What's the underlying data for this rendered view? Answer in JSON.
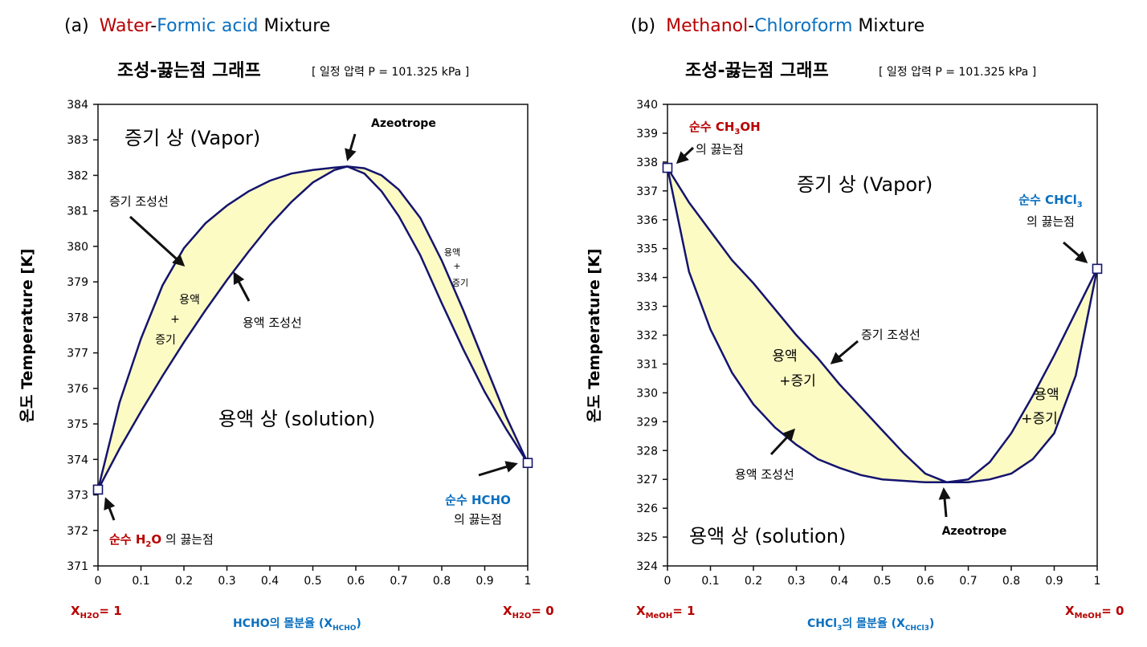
{
  "colors": {
    "title_red": "#b80000",
    "title_blue": "#0a6fbf",
    "curve": "#14146e",
    "fill": "#fdfbc4",
    "axis": "#111111"
  },
  "chart_data": [
    {
      "type": "line",
      "panel_label": "(a)",
      "heading": {
        "part1": "Water",
        "dash": "-",
        "part2": "Formic acid",
        "part3": " Mixture"
      },
      "title": "조성-끓는점 그래프",
      "subtitle": "[ 일정 압력 P = 101.325 kPa ]",
      "ylabel": "온도 Temperature [K]",
      "xlabel_main": "HCHO의 몰분율 (X",
      "xlabel_sub": "HCHO",
      "xlabel_end": ")",
      "x_left_label": {
        "main": "X",
        "sub": "H2O",
        "value": "= 1"
      },
      "x_right_label": {
        "main": "X",
        "sub": "H2O",
        "value": "= 0"
      },
      "xlim": [
        0,
        1
      ],
      "ylim": [
        371,
        384
      ],
      "xticks": [
        "0",
        "0.1",
        "0.2",
        "0.3",
        "0.4",
        "0.5",
        "0.6",
        "0.7",
        "0.8",
        "0.9",
        "1"
      ],
      "yticks": [
        "371",
        "372",
        "373",
        "374",
        "375",
        "376",
        "377",
        "378",
        "379",
        "380",
        "381",
        "382",
        "383",
        "384"
      ],
      "series": [
        {
          "name": "증기 조성선",
          "x": [
            0,
            0.05,
            0.1,
            0.15,
            0.2,
            0.25,
            0.3,
            0.35,
            0.4,
            0.45,
            0.5,
            0.55,
            0.58,
            0.62,
            0.66,
            0.7,
            0.75,
            0.8,
            0.85,
            0.9,
            0.95,
            1.0
          ],
          "y": [
            373.15,
            375.6,
            377.4,
            378.9,
            379.95,
            380.65,
            381.15,
            381.55,
            381.85,
            382.05,
            382.15,
            382.22,
            382.25,
            382.2,
            382.0,
            381.6,
            380.8,
            379.6,
            378.2,
            376.7,
            375.2,
            373.9
          ]
        },
        {
          "name": "용액 조성선",
          "x": [
            0,
            0.05,
            0.1,
            0.15,
            0.2,
            0.25,
            0.3,
            0.35,
            0.4,
            0.45,
            0.5,
            0.55,
            0.58,
            0.62,
            0.66,
            0.7,
            0.75,
            0.8,
            0.85,
            0.9,
            0.95,
            1.0
          ],
          "y": [
            373.15,
            374.3,
            375.35,
            376.35,
            377.3,
            378.2,
            379.05,
            379.85,
            380.6,
            381.25,
            381.8,
            382.15,
            382.25,
            382.05,
            381.55,
            380.85,
            379.75,
            378.4,
            377.1,
            375.9,
            374.85,
            373.9
          ]
        }
      ],
      "endpoints": [
        {
          "x": 0,
          "y": 373.15
        },
        {
          "x": 1,
          "y": 373.9
        }
      ],
      "annotations": {
        "vapor_region": "증기 상 (Vapor)",
        "liquid_region": "용액 상 (solution)",
        "azeotrope": "Azeotrope",
        "vapor_line": "증기 조성선",
        "liquid_line": "용액 조성선",
        "mix_left_1": "용액",
        "mix_left_2": "+",
        "mix_left_3": "증기",
        "mix_right_1": "용액",
        "mix_right_2": "+",
        "mix_right_3": "증기",
        "pure_left_red": "순수 H",
        "pure_left_sub": "2",
        "pure_left_red2": "O",
        "pure_left_black": " 의 끓는점",
        "pure_right_blue": "순수 HCHO",
        "pure_right_black": "의 끓는점"
      }
    },
    {
      "type": "line",
      "panel_label": "(b)",
      "heading": {
        "part1": "Methanol",
        "dash": "-",
        "part2": "Chloroform",
        "part3": " Mixture"
      },
      "title": "조성-끓는점 그래프",
      "subtitle": "[ 일정 압력 P = 101.325 kPa ]",
      "ylabel": "온도 Temperature [K]",
      "xlabel_main": "CHCl",
      "xlabel_sub1": "3",
      "xlabel_mid": "의 몰분율 (X",
      "xlabel_sub": "CHCl3",
      "xlabel_end": ")",
      "x_left_label": {
        "main": "X",
        "sub": "MeOH",
        "value": "= 1"
      },
      "x_right_label": {
        "main": "X",
        "sub": "MeOH",
        "value": "= 0"
      },
      "xlim": [
        0,
        1
      ],
      "ylim": [
        324,
        340
      ],
      "xticks": [
        "0",
        "0.1",
        "0.2",
        "0.3",
        "0.4",
        "0.5",
        "0.6",
        "0.7",
        "0.8",
        "0.9",
        "1"
      ],
      "yticks": [
        "324",
        "325",
        "326",
        "327",
        "328",
        "329",
        "330",
        "331",
        "332",
        "333",
        "334",
        "335",
        "336",
        "337",
        "338",
        "339",
        "340"
      ],
      "series": [
        {
          "name": "증기 조성선",
          "x": [
            0,
            0.05,
            0.1,
            0.15,
            0.2,
            0.25,
            0.3,
            0.35,
            0.4,
            0.45,
            0.5,
            0.55,
            0.6,
            0.65,
            0.7,
            0.75,
            0.8,
            0.85,
            0.9,
            0.95,
            1.0
          ],
          "y": [
            337.8,
            336.6,
            335.6,
            334.6,
            333.8,
            332.9,
            332.0,
            331.2,
            330.3,
            329.5,
            328.7,
            327.9,
            327.2,
            326.9,
            327.0,
            327.6,
            328.6,
            329.9,
            331.3,
            332.8,
            334.3
          ]
        },
        {
          "name": "용액 조성선",
          "x": [
            0,
            0.05,
            0.1,
            0.15,
            0.2,
            0.25,
            0.3,
            0.35,
            0.4,
            0.45,
            0.5,
            0.55,
            0.6,
            0.65,
            0.7,
            0.75,
            0.8,
            0.85,
            0.9,
            0.95,
            1.0
          ],
          "y": [
            337.8,
            334.2,
            332.2,
            330.7,
            329.6,
            328.8,
            328.2,
            327.7,
            327.4,
            327.15,
            327.0,
            326.95,
            326.9,
            326.9,
            326.9,
            327.0,
            327.2,
            327.7,
            328.6,
            330.6,
            334.3
          ]
        }
      ],
      "endpoints": [
        {
          "x": 0,
          "y": 337.8
        },
        {
          "x": 1,
          "y": 334.3
        }
      ],
      "annotations": {
        "vapor_region": "증기 상 (Vapor)",
        "liquid_region": "용액 상 (solution)",
        "azeotrope": "Azeotrope",
        "vapor_line": "증기 조성선",
        "liquid_line": "용액 조성선",
        "mix_left_1": "용액",
        "mix_left_2": "+증기",
        "mix_right_1": "용액",
        "mix_right_2": "+증기",
        "pure_left_red": "순수 CH",
        "pure_left_sub": "3",
        "pure_left_red2": "OH",
        "pure_left_black": "의 끓는점",
        "pure_right_blue": "순수 CHCl",
        "pure_right_sub": "3",
        "pure_right_black": "의 끓는점"
      }
    }
  ]
}
